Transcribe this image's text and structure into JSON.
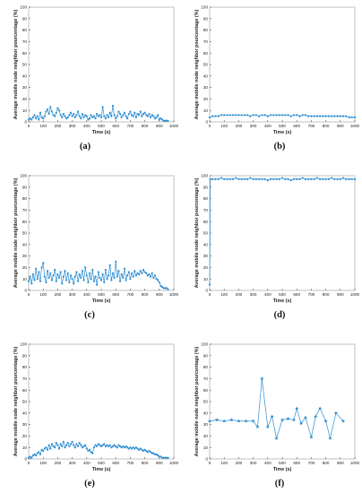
{
  "colors": {
    "series": "#2f8fd3",
    "axis": "#333333",
    "frame": "#9a9a9a"
  },
  "chart_data": [
    {
      "panel_label": "(a)",
      "type": "line",
      "marker": "dot",
      "xlabel": "Time (s)",
      "ylabel": "Average mobile node neighbor pourcentage (%)",
      "xlim": [
        0,
        1000
      ],
      "ylim": [
        0,
        100
      ],
      "xticks": [
        0,
        100,
        200,
        300,
        400,
        500,
        600,
        700,
        800,
        900,
        1000
      ],
      "yticks": [
        0,
        10,
        20,
        30,
        40,
        50,
        60,
        70,
        80,
        90,
        100
      ],
      "x": [
        0,
        10,
        20,
        30,
        40,
        50,
        60,
        70,
        80,
        90,
        100,
        110,
        120,
        130,
        140,
        150,
        160,
        170,
        180,
        190,
        200,
        210,
        220,
        230,
        240,
        250,
        260,
        270,
        280,
        290,
        300,
        310,
        320,
        330,
        340,
        350,
        360,
        370,
        380,
        390,
        400,
        410,
        420,
        430,
        440,
        450,
        460,
        470,
        480,
        490,
        500,
        510,
        520,
        530,
        540,
        550,
        560,
        570,
        580,
        590,
        600,
        610,
        620,
        630,
        640,
        650,
        660,
        670,
        680,
        690,
        700,
        710,
        720,
        730,
        740,
        750,
        760,
        770,
        780,
        790,
        800,
        810,
        820,
        830,
        840,
        850,
        860,
        870,
        880,
        890,
        900,
        910,
        920,
        930,
        940,
        950,
        960
      ],
      "y": [
        2,
        3,
        2,
        4,
        6,
        3,
        5,
        2,
        8,
        4,
        3,
        5,
        9,
        11,
        7,
        13,
        9,
        6,
        5,
        8,
        12,
        10,
        6,
        4,
        7,
        5,
        3,
        4,
        6,
        8,
        5,
        7,
        4,
        6,
        9,
        5,
        3,
        7,
        4,
        6,
        5,
        2,
        3,
        6,
        4,
        5,
        3,
        7,
        5,
        6,
        4,
        13,
        5,
        3,
        6,
        4,
        8,
        5,
        14,
        6,
        3,
        5,
        9,
        7,
        4,
        6,
        8,
        5,
        3,
        7,
        9,
        6,
        5,
        8,
        4,
        7,
        6,
        9,
        5,
        7,
        8,
        6,
        5,
        7,
        4,
        6,
        5,
        3,
        4,
        6,
        2,
        3,
        2,
        1,
        1,
        1,
        1
      ]
    },
    {
      "panel_label": "(b)",
      "type": "line",
      "marker": "dot",
      "xlabel": "Time (s)",
      "ylabel": "Average mobile node neighbor pourcentage (%)",
      "xlim": [
        0,
        1000
      ],
      "ylim": [
        0,
        100
      ],
      "xticks": [
        0,
        100,
        200,
        300,
        400,
        500,
        600,
        700,
        800,
        900,
        1000
      ],
      "yticks": [
        0,
        10,
        20,
        30,
        40,
        50,
        60,
        70,
        80,
        90,
        100
      ],
      "x": [
        0,
        20,
        40,
        60,
        80,
        100,
        120,
        140,
        160,
        180,
        200,
        220,
        240,
        260,
        280,
        300,
        320,
        340,
        360,
        380,
        400,
        420,
        440,
        460,
        480,
        500,
        520,
        540,
        560,
        580,
        600,
        620,
        640,
        660,
        680,
        700,
        720,
        740,
        760,
        780,
        800,
        820,
        840,
        860,
        880,
        900,
        920,
        940,
        960,
        980,
        1000
      ],
      "y": [
        4,
        5,
        5,
        5,
        6,
        6,
        6,
        6,
        6,
        6,
        6,
        6,
        6,
        6,
        5,
        6,
        6,
        5,
        6,
        6,
        5,
        6,
        6,
        6,
        6,
        6,
        6,
        6,
        5,
        6,
        6,
        5,
        6,
        6,
        5,
        5,
        5,
        5,
        5,
        5,
        5,
        5,
        5,
        5,
        5,
        5,
        5,
        5,
        4,
        4,
        4
      ]
    },
    {
      "panel_label": "(c)",
      "type": "line",
      "marker": "dot",
      "xlabel": "Time (s)",
      "ylabel": "Average mobile node neighbor pourcentage (%)",
      "xlim": [
        0,
        1000
      ],
      "ylim": [
        0,
        100
      ],
      "xticks": [
        0,
        100,
        200,
        300,
        400,
        500,
        600,
        700,
        800,
        900,
        1000
      ],
      "yticks": [
        0,
        10,
        20,
        30,
        40,
        50,
        60,
        70,
        80,
        90,
        100
      ],
      "x": [
        0,
        10,
        20,
        30,
        40,
        50,
        60,
        70,
        80,
        90,
        100,
        110,
        120,
        130,
        140,
        150,
        160,
        170,
        180,
        190,
        200,
        210,
        220,
        230,
        240,
        250,
        260,
        270,
        280,
        290,
        300,
        310,
        320,
        330,
        340,
        350,
        360,
        370,
        380,
        390,
        400,
        410,
        420,
        430,
        440,
        450,
        460,
        470,
        480,
        490,
        500,
        510,
        520,
        530,
        540,
        550,
        560,
        570,
        580,
        590,
        600,
        610,
        620,
        630,
        640,
        650,
        660,
        670,
        680,
        690,
        700,
        710,
        720,
        730,
        740,
        750,
        760,
        770,
        780,
        790,
        800,
        810,
        820,
        830,
        840,
        850,
        860,
        870,
        880,
        890,
        900,
        910,
        920,
        930,
        940,
        950,
        960
      ],
      "y": [
        8,
        12,
        6,
        14,
        9,
        19,
        10,
        16,
        8,
        20,
        24,
        12,
        7,
        17,
        11,
        15,
        9,
        13,
        18,
        8,
        14,
        11,
        16,
        6,
        12,
        17,
        9,
        15,
        7,
        13,
        10,
        6,
        12,
        16,
        8,
        14,
        11,
        17,
        9,
        20,
        13,
        7,
        15,
        10,
        18,
        8,
        12,
        5,
        16,
        11,
        9,
        14,
        7,
        18,
        10,
        13,
        22,
        9,
        15,
        11,
        25,
        12,
        17,
        8,
        14,
        11,
        19,
        9,
        13,
        16,
        10,
        15,
        12,
        17,
        13,
        15,
        14,
        17,
        15,
        18,
        16,
        15,
        13,
        14,
        12,
        15,
        11,
        13,
        10,
        9,
        7,
        4,
        3,
        2,
        2,
        2,
        1
      ]
    },
    {
      "panel_label": "(d)",
      "type": "line",
      "marker": "dot",
      "xlabel": "Time (s)",
      "ylabel": "Average mobile node neighbor pourcentage (%)",
      "xlim": [
        0,
        1000
      ],
      "ylim": [
        0,
        100
      ],
      "xticks": [
        0,
        100,
        200,
        300,
        400,
        500,
        600,
        700,
        800,
        900,
        1000
      ],
      "yticks": [
        0,
        10,
        20,
        30,
        40,
        50,
        60,
        70,
        80,
        90,
        100
      ],
      "x": [
        0,
        5,
        20,
        40,
        60,
        80,
        100,
        120,
        140,
        160,
        180,
        200,
        220,
        240,
        260,
        280,
        300,
        320,
        340,
        360,
        380,
        400,
        420,
        440,
        460,
        480,
        500,
        520,
        540,
        560,
        580,
        600,
        620,
        640,
        660,
        680,
        700,
        720,
        740,
        760,
        780,
        800,
        820,
        840,
        860,
        880,
        900,
        920,
        940,
        960,
        980,
        1000
      ],
      "y": [
        5,
        97,
        97,
        97,
        97,
        98,
        97,
        97,
        97,
        97,
        98,
        97,
        97,
        97,
        97,
        98,
        97,
        97,
        97,
        97,
        97,
        96,
        97,
        97,
        97,
        97,
        98,
        97,
        97,
        96,
        97,
        97,
        97,
        98,
        97,
        97,
        97,
        97,
        98,
        97,
        97,
        97,
        97,
        98,
        97,
        97,
        97,
        98,
        97,
        97,
        97,
        97
      ]
    },
    {
      "panel_label": "(e)",
      "type": "line",
      "marker": "dot",
      "xlabel": "Time (s)",
      "ylabel": "Average mobile node neighbor pourcentage (%)",
      "xlim": [
        0,
        1000
      ],
      "ylim": [
        0,
        100
      ],
      "xticks": [
        0,
        100,
        200,
        300,
        400,
        500,
        600,
        700,
        800,
        900,
        1000
      ],
      "yticks": [
        0,
        10,
        20,
        30,
        40,
        50,
        60,
        70,
        80,
        90,
        100
      ],
      "x": [
        0,
        10,
        20,
        30,
        40,
        50,
        60,
        70,
        80,
        90,
        100,
        110,
        120,
        130,
        140,
        150,
        160,
        170,
        180,
        190,
        200,
        210,
        220,
        230,
        240,
        250,
        260,
        270,
        280,
        290,
        300,
        310,
        320,
        330,
        340,
        350,
        360,
        370,
        380,
        390,
        400,
        410,
        420,
        430,
        440,
        450,
        460,
        470,
        480,
        490,
        500,
        510,
        520,
        530,
        540,
        550,
        560,
        570,
        580,
        590,
        600,
        610,
        620,
        630,
        640,
        650,
        660,
        670,
        680,
        690,
        700,
        710,
        720,
        730,
        740,
        750,
        760,
        770,
        780,
        790,
        800,
        810,
        820,
        830,
        840,
        850,
        860,
        870,
        880,
        890,
        900,
        910,
        920,
        930,
        940,
        950,
        960
      ],
      "y": [
        1,
        2,
        1,
        3,
        4,
        3,
        5,
        6,
        4,
        8,
        7,
        9,
        10,
        8,
        12,
        9,
        13,
        11,
        10,
        14,
        12,
        9,
        13,
        11,
        15,
        10,
        12,
        14,
        11,
        13,
        15,
        12,
        10,
        13,
        11,
        14,
        12,
        10,
        11,
        12,
        9,
        7,
        8,
        6,
        5,
        10,
        12,
        11,
        13,
        12,
        11,
        12,
        13,
        11,
        12,
        11,
        12,
        10,
        11,
        12,
        11,
        10,
        12,
        11,
        10,
        11,
        10,
        11,
        10,
        9,
        10,
        9,
        10,
        9,
        10,
        9,
        8,
        9,
        8,
        7,
        8,
        7,
        6,
        7,
        6,
        5,
        5,
        4,
        4,
        3,
        2,
        2,
        1,
        1,
        1,
        1,
        1
      ]
    },
    {
      "panel_label": "(f)",
      "type": "line",
      "marker": "star",
      "xlabel": "Time (s)",
      "ylabel": "Average mobile node neighbor pourcentage (%)",
      "xlim": [
        0,
        1000
      ],
      "ylim": [
        0,
        100
      ],
      "xticks": [
        0,
        100,
        200,
        300,
        400,
        500,
        600,
        700,
        800,
        900,
        1000
      ],
      "yticks": [
        0,
        10,
        20,
        30,
        40,
        50,
        60,
        70,
        80,
        90,
        100
      ],
      "x": [
        0,
        50,
        100,
        150,
        200,
        250,
        300,
        330,
        360,
        400,
        430,
        460,
        500,
        540,
        580,
        600,
        630,
        660,
        700,
        730,
        760,
        800,
        830,
        870,
        920
      ],
      "y": [
        33,
        34,
        33,
        34,
        33,
        33,
        33,
        28,
        70,
        28,
        37,
        18,
        34,
        35,
        34,
        44,
        31,
        36,
        19,
        37,
        44,
        33,
        18,
        40,
        33
      ]
    }
  ]
}
